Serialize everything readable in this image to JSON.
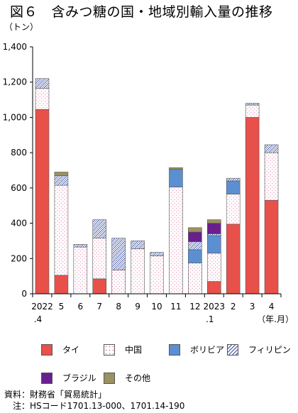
{
  "title": "図６　含みつ糖の国・地域別輸入量の推移",
  "source": {
    "line1": "資料：財務省「貿易統計」",
    "line2": "　注：HSコード1701.13-000、1701.14-190"
  },
  "colors": {
    "thai": "#e8504a",
    "china": "#ffffff",
    "bolivia": "#5b8fd1",
    "philippines": "#ffffff",
    "brazil": "#6a1f8f",
    "other": "#9a9260"
  },
  "chart_data": {
    "type": "bar",
    "stacked": true,
    "yunit": "（トン）",
    "xunit": "（年.月）",
    "ylim": [
      0,
      1400
    ],
    "yticks": [
      "0",
      "200",
      "400",
      "600",
      "800",
      "1,000",
      "1,200",
      "1,400"
    ],
    "ytick_values": [
      0,
      200,
      400,
      600,
      800,
      1000,
      1200,
      1400
    ],
    "categories": [
      "2022",
      "5",
      "6",
      "7",
      "8",
      "9",
      "10",
      "11",
      "12",
      "2023",
      "2",
      "3",
      "4"
    ],
    "category_sublabels": [
      ".4",
      "",
      "",
      "",
      "",
      "",
      "",
      "",
      "",
      ".1",
      "",
      "",
      ""
    ],
    "series": [
      {
        "name": "タイ",
        "key": "thai",
        "values": [
          1045,
          105,
          0,
          85,
          0,
          0,
          0,
          0,
          0,
          70,
          395,
          1000,
          530
        ]
      },
      {
        "name": "中国",
        "key": "china",
        "values": [
          120,
          510,
          265,
          230,
          135,
          255,
          215,
          605,
          175,
          160,
          170,
          70,
          270
        ]
      },
      {
        "name": "ボリビア",
        "key": "bolivia",
        "values": [
          0,
          0,
          0,
          0,
          0,
          0,
          0,
          100,
          75,
          100,
          75,
          0,
          0
        ]
      },
      {
        "name": "フィリピン",
        "key": "philippines",
        "values": [
          55,
          55,
          15,
          105,
          180,
          45,
          20,
          0,
          45,
          10,
          15,
          10,
          45
        ]
      },
      {
        "name": "ブラジル",
        "key": "brazil",
        "values": [
          0,
          0,
          0,
          0,
          0,
          0,
          0,
          0,
          55,
          60,
          0,
          0,
          0
        ]
      },
      {
        "name": "その他",
        "key": "other",
        "values": [
          0,
          20,
          0,
          0,
          0,
          0,
          0,
          10,
          25,
          20,
          0,
          0,
          0
        ]
      }
    ],
    "legend_position": "bottom",
    "grid": false
  }
}
